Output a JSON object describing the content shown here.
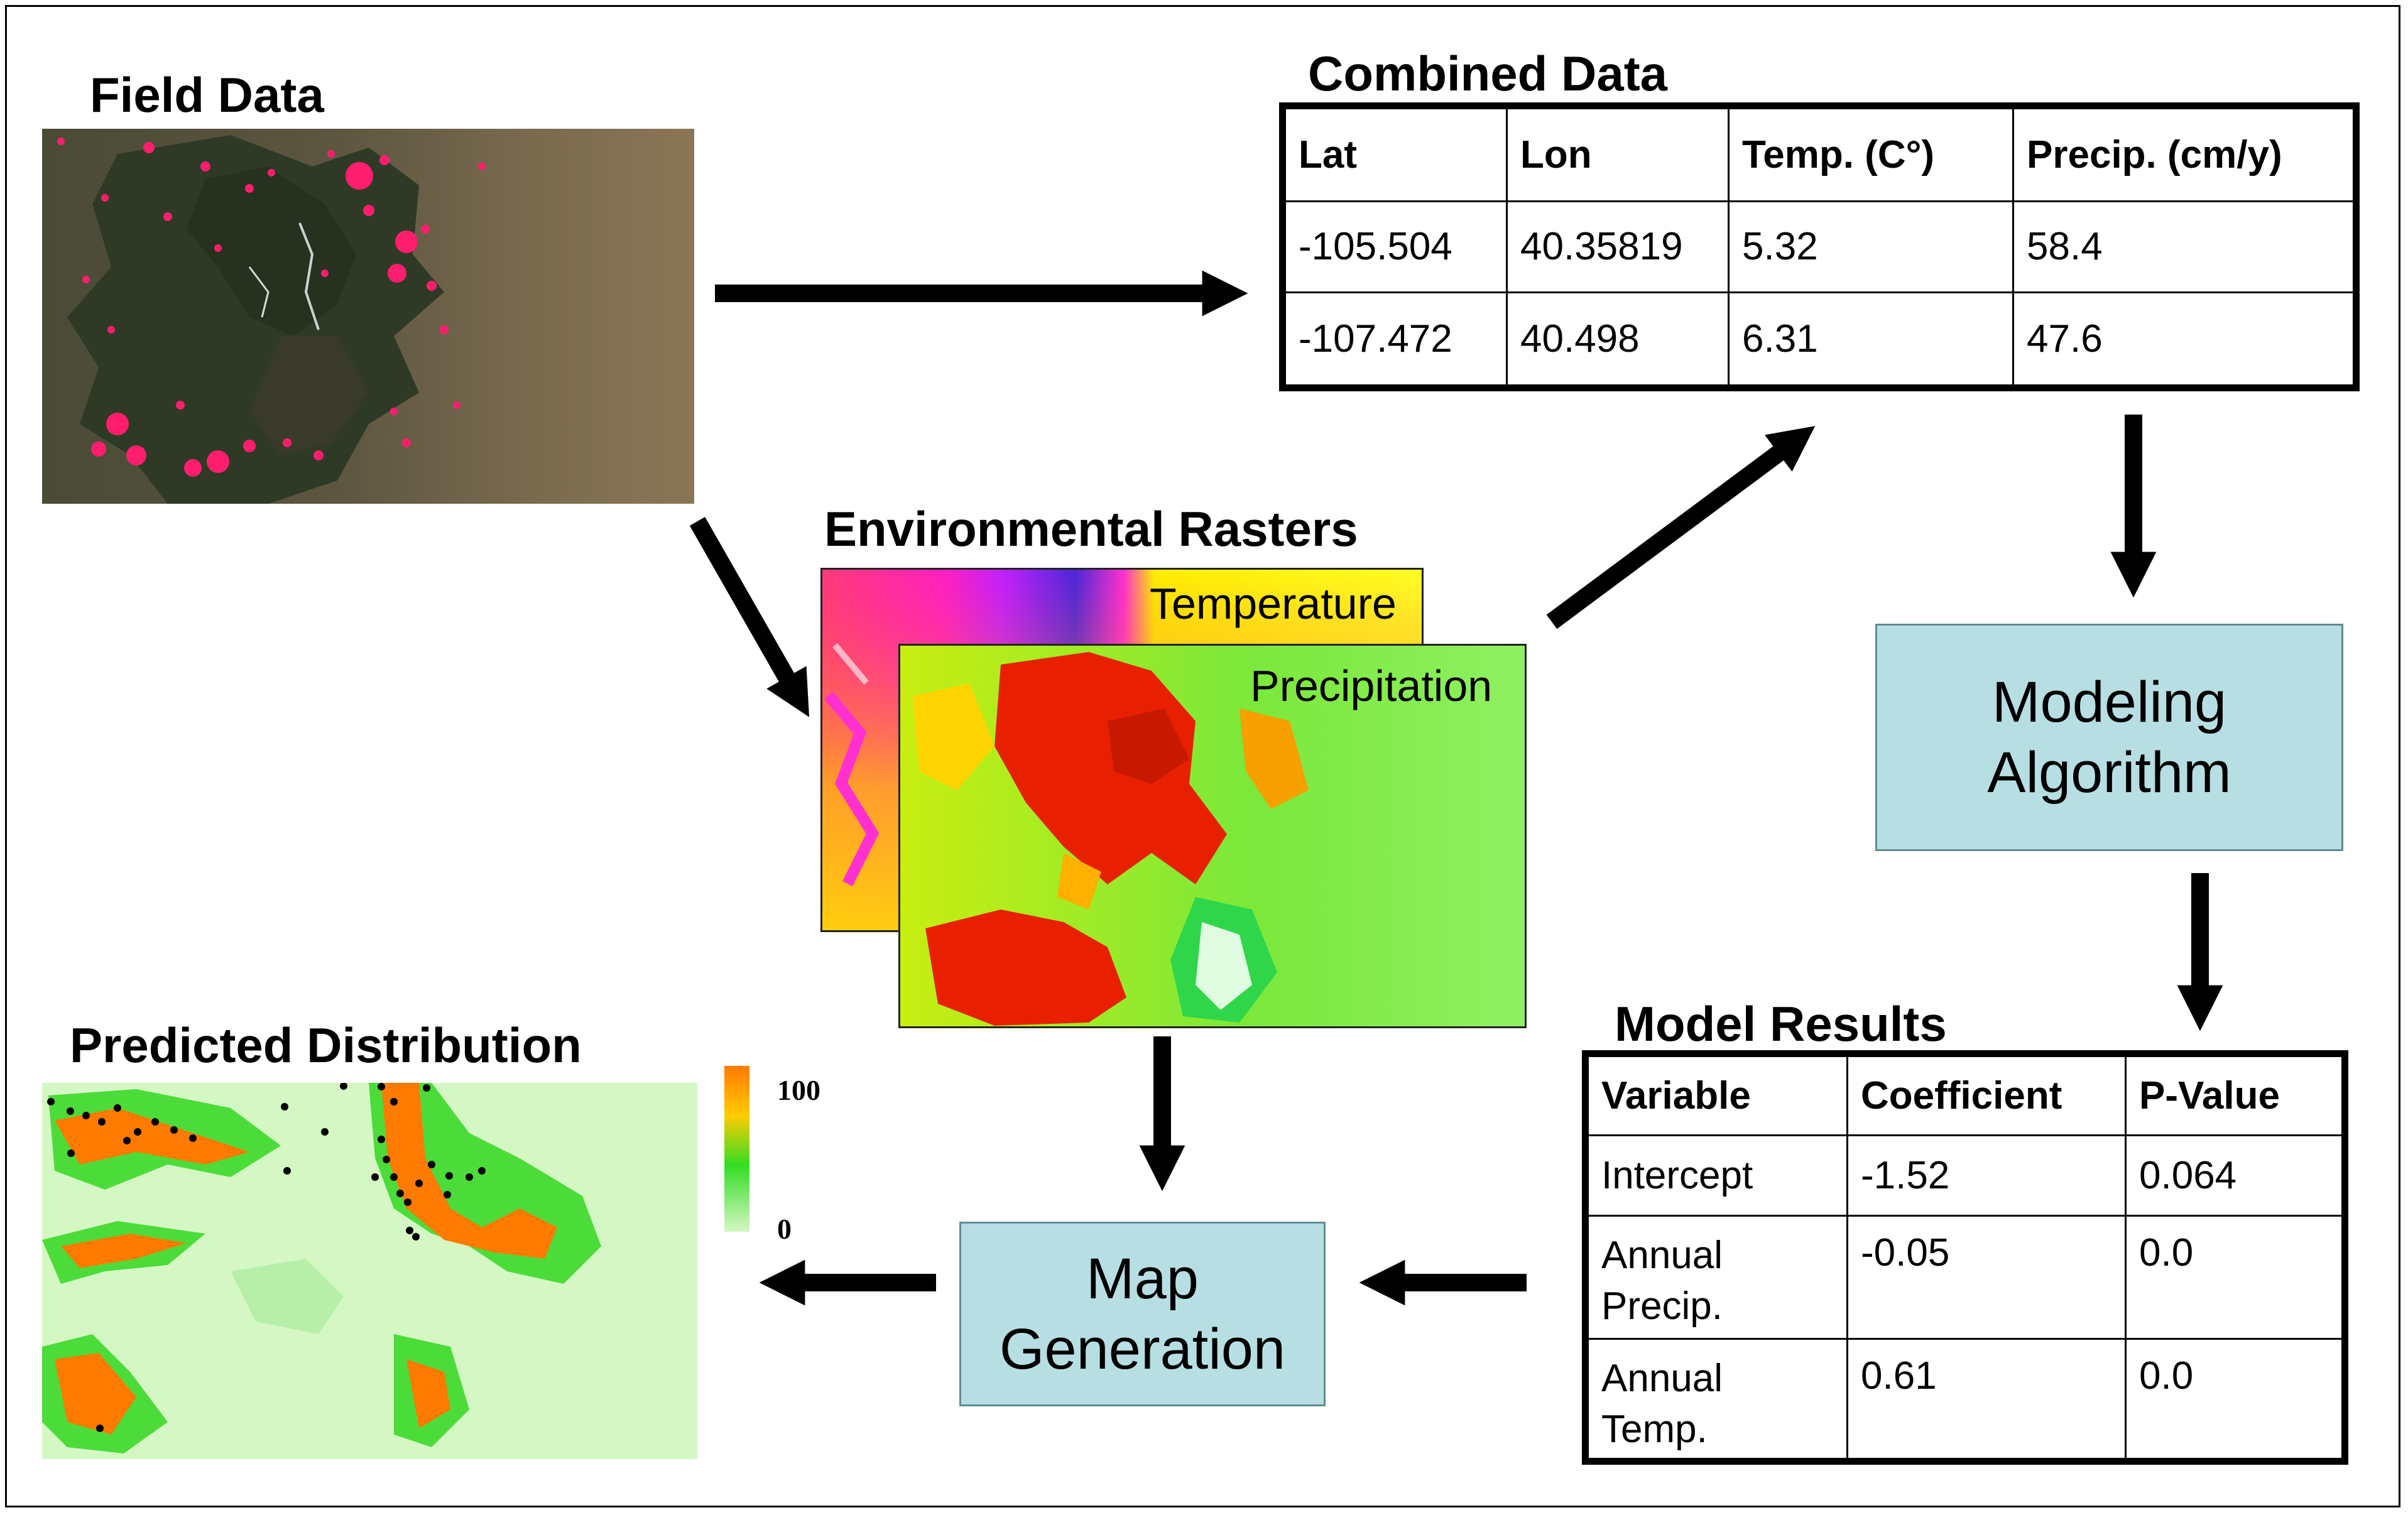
{
  "titles": {
    "field_data": "Field Data",
    "combined_data": "Combined Data",
    "environmental_rasters": "Environmental Rasters",
    "model_results": "Model Results",
    "predicted_distribution": "Predicted Distribution"
  },
  "rasters": {
    "temperature_label": "Temperature",
    "precipitation_label": "Precipitation"
  },
  "combined_table": {
    "headers": [
      "Lat",
      "Lon",
      "Temp. (C°)",
      "Precip. (cm/y)"
    ],
    "rows": [
      [
        "-105.504",
        "40.35819",
        "5.32",
        "58.4"
      ],
      [
        "-107.472",
        "40.498",
        "6.31",
        "47.6"
      ]
    ]
  },
  "model_table": {
    "headers": [
      "Variable",
      "Coefficient",
      "P-Value"
    ],
    "rows": [
      {
        "var1": "Intercept",
        "var2": "",
        "coef": "-1.52",
        "p": "0.064"
      },
      {
        "var1": "Annual",
        "var2": "Precip.",
        "coef": "-0.05",
        "p": "0.0"
      },
      {
        "var1": "Annual",
        "var2": "Temp.",
        "coef": "0.61",
        "p": "0.0"
      }
    ]
  },
  "boxes": {
    "modeling_line1": "Modeling",
    "modeling_line2": "Algorithm",
    "map_line1": "Map",
    "map_line2": "Generation"
  },
  "legend": {
    "max": "100",
    "min": "0"
  },
  "colors": {
    "box_fill": "#b7dfe3",
    "field_points": "#ff1e6e",
    "prediction_high": "#ff7a00",
    "prediction_mid": "#33dd22",
    "prediction_low": "#d4f7c4"
  }
}
